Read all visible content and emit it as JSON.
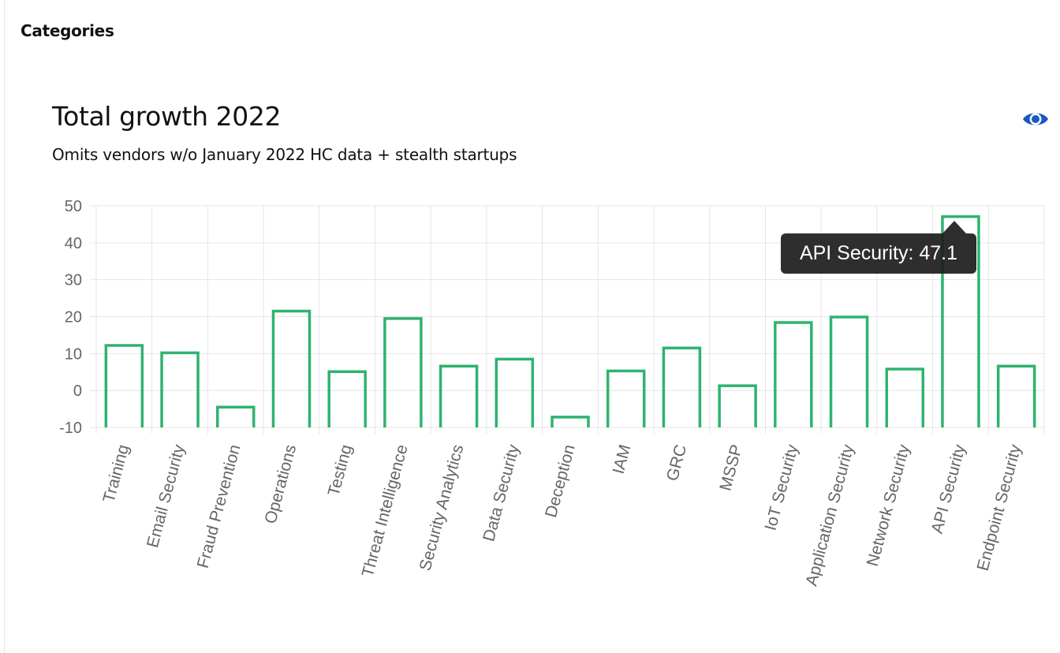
{
  "section": {
    "title": "Categories"
  },
  "card": {
    "title": "Total growth 2022",
    "subtitle": "Omits vendors w/o January 2022 HC data + stealth startups",
    "toggle_icon": "eye-icon"
  },
  "colors": {
    "bar_stroke": "#2fb36e",
    "eye_icon": "#1a56c4",
    "grid": "#e5e5e5",
    "axis_text": "#666666"
  },
  "tooltip": {
    "text": "API Security: 47.1"
  },
  "chart_data": {
    "type": "bar",
    "title": "Total growth 2022",
    "subtitle": "Omits vendors w/o January 2022 HC data + stealth startups",
    "categories": [
      "Training",
      "Email Security",
      "Fraud Prevention",
      "Operations",
      "Testing",
      "Threat Intelligence",
      "Security Analytics",
      "Data Security",
      "Deception",
      "IAM",
      "GRC",
      "MSSP",
      "IoT Security",
      "Application Security",
      "Network Security",
      "API Security",
      "Endpoint Security"
    ],
    "values": [
      12.2,
      10.2,
      -4.5,
      21.5,
      5.1,
      19.5,
      6.6,
      8.5,
      -7.2,
      5.3,
      11.5,
      1.3,
      18.4,
      19.9,
      5.8,
      47.1,
      6.6
    ],
    "ylim": [
      -10,
      50
    ],
    "yticks": [
      -10,
      0,
      10,
      20,
      30,
      40,
      50
    ],
    "xlabel": "",
    "ylabel": "",
    "grid": true,
    "legend": "none",
    "bar_style": "outline"
  }
}
